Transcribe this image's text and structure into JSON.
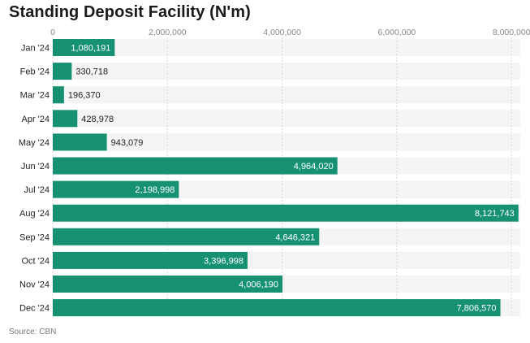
{
  "chart_data": {
    "type": "bar",
    "orientation": "horizontal",
    "title": "Standing Deposit Facility (N'm)",
    "source": "Source: CBN",
    "xlabel": "",
    "ylabel": "",
    "xlim": [
      0,
      8200000
    ],
    "ticks": [
      0,
      2000000,
      4000000,
      6000000,
      8000000
    ],
    "tick_labels": [
      "0",
      "2,000,000",
      "4,000,000",
      "6,000,000",
      "8,000,000"
    ],
    "categories": [
      "Jan '24",
      "Feb '24",
      "Mar '24",
      "Apr '24",
      "May '24",
      "Jun '24",
      "Jul '24",
      "Aug '24",
      "Sep '24",
      "Oct '24",
      "Nov '24",
      "Dec '24"
    ],
    "values": [
      1080191,
      330718,
      196370,
      428978,
      943079,
      4964020,
      2198998,
      8121743,
      4646321,
      3396998,
      4006190,
      7806570
    ],
    "value_labels": [
      "1,080,191",
      "330,718",
      "196,370",
      "428,978",
      "943,079",
      "4,964,020",
      "2,198,998",
      "8,121,743",
      "4,646,321",
      "3,396,998",
      "4,006,190",
      "7,806,570"
    ],
    "colors": {
      "bar": "#169273",
      "row_band": "#f4f4f4",
      "grid": "#d8d8d8",
      "label_inside": "#ffffff",
      "label_outside": "#222222"
    }
  }
}
